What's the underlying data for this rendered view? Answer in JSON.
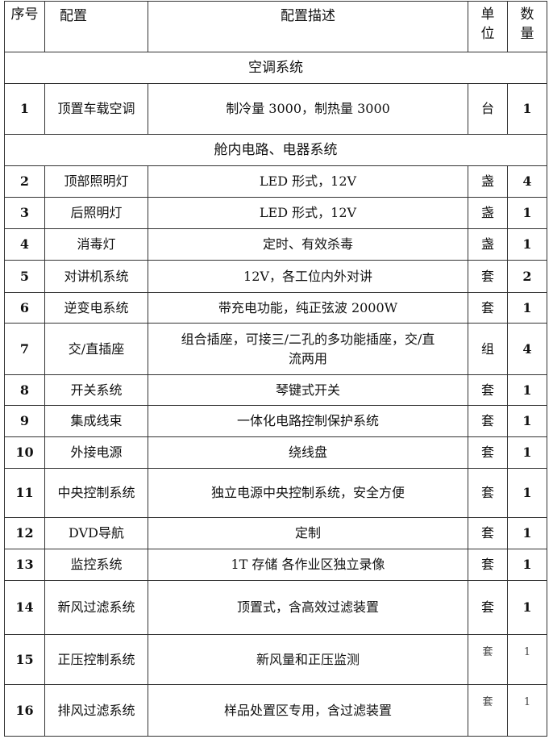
{
  "headers": {
    "index": "序号",
    "config": "配置",
    "description": "配置描述",
    "unit": "单位",
    "qty": "数量"
  },
  "rows": [
    {
      "section": "空调系统"
    },
    {
      "index": "1",
      "config": "顶置车载空调",
      "description": "制冷量 3000，制热量 3000",
      "unit": "台",
      "qty": "1"
    },
    {
      "section": "舱内电路、电器系统"
    },
    {
      "index": "2",
      "config": "顶部照明灯",
      "description": "LED 形式，12V",
      "unit": "盏",
      "qty": "4"
    },
    {
      "index": "3",
      "config": "后照明灯",
      "description": "LED 形式，12V",
      "unit": "盏",
      "qty": "1"
    },
    {
      "index": "4",
      "config": "消毒灯",
      "description": "定时、有效杀毒",
      "unit": "盏",
      "qty": "1"
    },
    {
      "index": "5",
      "config": "对讲机系统",
      "description": "12V，各工位内外对讲",
      "unit": "套",
      "qty": "2"
    },
    {
      "index": "6",
      "config": "逆变电系统",
      "description": "带充电功能，纯正弦波 2000W",
      "unit": "套",
      "qty": "1"
    },
    {
      "index": "7",
      "config": "交/直插座",
      "description": "组合插座，可接三/二孔的多功能插座，交/直流两用",
      "unit": "组",
      "qty": "4"
    },
    {
      "index": "8",
      "config": "开关系统",
      "description": "琴键式开关",
      "unit": "套",
      "qty": "1"
    },
    {
      "index": "9",
      "config": "集成线束",
      "description": "一体化电路控制保护系统",
      "unit": "套",
      "qty": "1"
    },
    {
      "index": "10",
      "config": "外接电源",
      "description": "绕线盘",
      "unit": "套",
      "qty": "1"
    },
    {
      "index": "11",
      "config": "中央控制系统",
      "description": "独立电源中央控制系统，安全方便",
      "unit": "套",
      "qty": "1"
    },
    {
      "index": "12",
      "config": "DVD导航",
      "description": "定制",
      "unit": "套",
      "qty": "1"
    },
    {
      "index": "13",
      "config": "监控系统",
      "description": "1T 存储 各作业区独立录像",
      "unit": "套",
      "qty": "1"
    },
    {
      "index": "14",
      "config": "新风过滤系统",
      "description": "顶置式，含高效过滤装置",
      "unit": "套",
      "qty": "1"
    },
    {
      "index": "15",
      "config": "正压控制系统",
      "description": "新风量和正压监测",
      "unit": "套",
      "qty": "1",
      "small": true
    },
    {
      "index": "16",
      "config": "排风过滤系统",
      "description": "样品处置区专用，含过滤装置",
      "unit": "套",
      "qty": "1",
      "small": true
    }
  ]
}
